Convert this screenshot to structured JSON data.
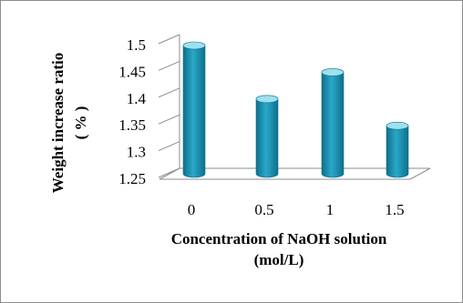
{
  "chart_data": {
    "type": "bar",
    "style": "3d-cylinder",
    "categories": [
      "0",
      "0.5",
      "1",
      "1.5"
    ],
    "values": [
      1.5,
      1.4,
      1.45,
      1.35
    ],
    "title": "",
    "xlabel_lines": [
      "Concentration of NaOH solution",
      "(mol/L)"
    ],
    "ylabel_lines": [
      "Weight increase ratio",
      "( % )"
    ],
    "ylim": [
      1.25,
      1.5
    ],
    "yticks": [
      "1.25",
      "1.3",
      "1.35",
      "1.4",
      "1.45",
      "1.5"
    ],
    "grid": false,
    "legend": "none",
    "bar_color": "#2aa8c8",
    "bar_dark": "#0e6f8c",
    "bar_light": "#9ee0ef"
  }
}
